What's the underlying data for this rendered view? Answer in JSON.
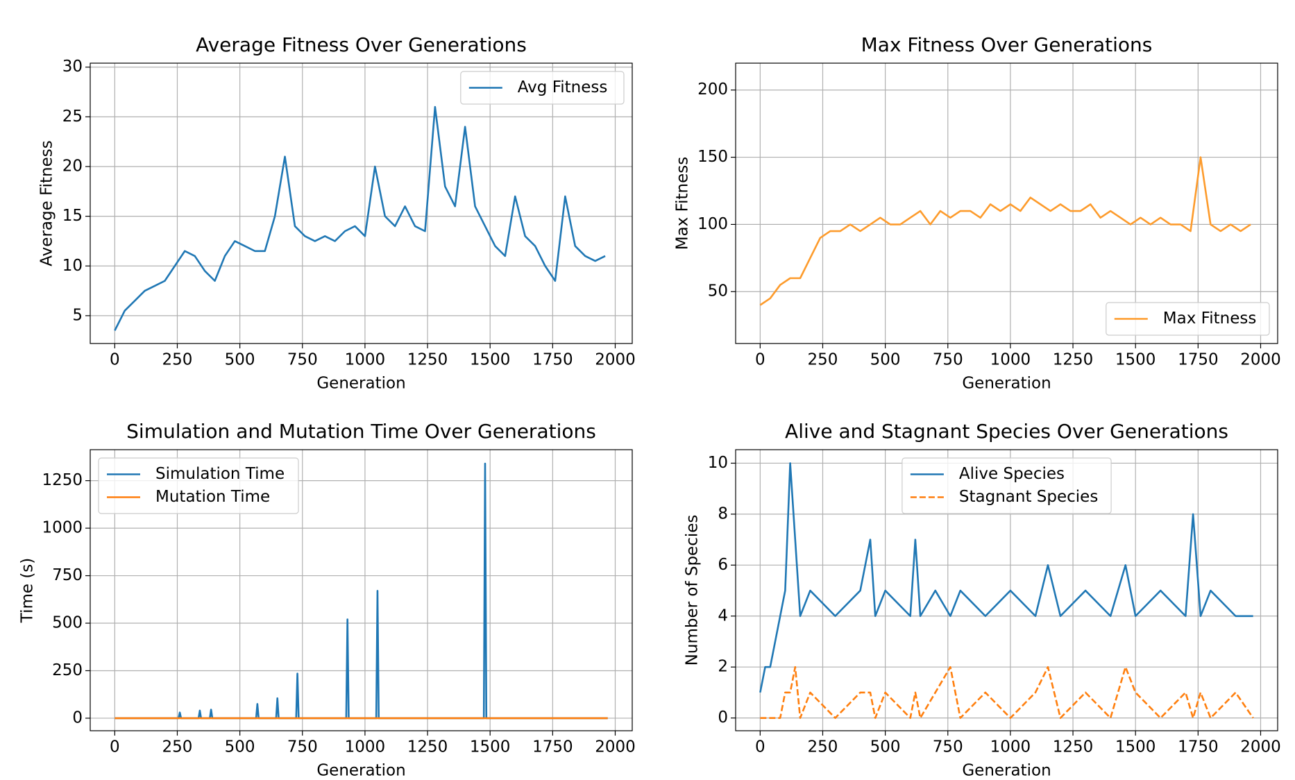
{
  "chart_data": [
    {
      "type": "line",
      "title": "Average Fitness Over Generations",
      "xlabel": "Generation",
      "ylabel": "Average Fitness",
      "x": [
        0,
        40,
        80,
        120,
        160,
        200,
        240,
        280,
        320,
        360,
        400,
        440,
        480,
        520,
        560,
        600,
        640,
        680,
        720,
        760,
        800,
        840,
        880,
        920,
        960,
        1000,
        1040,
        1080,
        1120,
        1160,
        1200,
        1240,
        1280,
        1320,
        1360,
        1400,
        1440,
        1480,
        1520,
        1560,
        1600,
        1640,
        1680,
        1720,
        1760,
        1800,
        1840,
        1880,
        1920,
        1960
      ],
      "series": [
        {
          "name": "Avg Fitness",
          "color": "#1f77b4",
          "values": [
            3.5,
            5.5,
            6.5,
            7.5,
            8,
            8.5,
            10,
            11.5,
            11,
            9.5,
            8.5,
            11,
            12.5,
            12,
            11.5,
            11.5,
            15,
            21,
            14,
            13,
            12.5,
            13,
            12.5,
            13.5,
            14,
            13,
            20,
            15,
            14,
            16,
            14,
            13.5,
            26,
            18,
            16,
            24,
            16,
            14,
            12,
            11,
            17,
            13,
            12,
            10,
            8.5,
            17,
            12,
            11,
            10.5,
            11
          ]
        }
      ],
      "xlim": [
        -98,
        2068
      ],
      "ylim": [
        2.2,
        30.4
      ],
      "xticks": [
        0,
        250,
        500,
        750,
        1000,
        1250,
        1500,
        1750,
        2000
      ],
      "yticks": [
        5,
        10,
        15,
        20,
        25,
        30
      ],
      "grid": true,
      "legend": "upper right"
    },
    {
      "type": "line",
      "title": "Max Fitness Over Generations",
      "xlabel": "Generation",
      "ylabel": "Max Fitness",
      "x": [
        0,
        40,
        80,
        120,
        160,
        200,
        240,
        280,
        320,
        360,
        400,
        440,
        480,
        520,
        560,
        600,
        640,
        680,
        720,
        760,
        800,
        840,
        880,
        920,
        960,
        1000,
        1040,
        1080,
        1120,
        1160,
        1200,
        1240,
        1280,
        1320,
        1360,
        1400,
        1440,
        1480,
        1520,
        1560,
        1600,
        1640,
        1680,
        1720,
        1760,
        1800,
        1840,
        1880,
        1920,
        1960
      ],
      "series": [
        {
          "name": "Max Fitness",
          "color": "#fd9b2c",
          "values": [
            40,
            45,
            55,
            60,
            60,
            75,
            90,
            95,
            95,
            100,
            95,
            100,
            105,
            100,
            100,
            105,
            110,
            100,
            110,
            105,
            110,
            110,
            105,
            115,
            110,
            115,
            110,
            120,
            115,
            110,
            115,
            110,
            110,
            115,
            105,
            110,
            105,
            100,
            105,
            100,
            105,
            100,
            100,
            95,
            150,
            100,
            95,
            100,
            95,
            100
          ]
        }
      ],
      "xlim": [
        -98,
        2068
      ],
      "ylim": [
        11.4,
        220
      ],
      "xticks": [
        0,
        250,
        500,
        750,
        1000,
        1250,
        1500,
        1750,
        2000
      ],
      "yticks": [
        50,
        100,
        150,
        200
      ],
      "grid": true,
      "legend": "lower right"
    },
    {
      "type": "line",
      "title": "Simulation and Mutation Time Over Generations",
      "xlabel": "Generation",
      "ylabel": "Time (s)",
      "x": [
        0,
        255,
        260,
        265,
        335,
        340,
        345,
        380,
        385,
        390,
        565,
        570,
        575,
        645,
        650,
        655,
        725,
        730,
        735,
        925,
        930,
        935,
        1045,
        1050,
        1055,
        1475,
        1480,
        1485,
        1970
      ],
      "series": [
        {
          "name": "Simulation Time",
          "color": "#1f77b4",
          "values": [
            0,
            0,
            30,
            0,
            0,
            40,
            0,
            0,
            45,
            0,
            0,
            75,
            0,
            0,
            105,
            0,
            0,
            235,
            0,
            0,
            520,
            0,
            0,
            670,
            0,
            0,
            1340,
            0,
            0
          ]
        },
        {
          "name": "Mutation Time",
          "color": "#ff7f0e",
          "values": [
            0,
            0,
            0,
            0,
            0,
            0,
            0,
            0,
            0,
            0,
            0,
            0,
            0,
            0,
            0,
            0,
            0,
            0,
            0,
            0,
            0,
            0,
            0,
            0,
            0,
            0,
            0,
            0,
            0
          ]
        }
      ],
      "xlim": [
        -98,
        2068
      ],
      "ylim": [
        -66,
        1413
      ],
      "xticks": [
        0,
        250,
        500,
        750,
        1000,
        1250,
        1500,
        1750,
        2000
      ],
      "yticks": [
        0,
        250,
        500,
        750,
        1000,
        1250
      ],
      "grid": true,
      "legend": "upper left"
    },
    {
      "type": "line",
      "title": "Alive and Stagnant Species Over Generations",
      "xlabel": "Generation",
      "ylabel": "Number of Species",
      "x": [
        0,
        20,
        40,
        60,
        80,
        100,
        120,
        140,
        160,
        200,
        300,
        400,
        440,
        460,
        500,
        600,
        620,
        640,
        700,
        760,
        800,
        900,
        1000,
        1100,
        1150,
        1200,
        1300,
        1400,
        1460,
        1500,
        1600,
        1700,
        1730,
        1760,
        1800,
        1900,
        1970
      ],
      "series": [
        {
          "name": "Alive Species",
          "color": "#1f77b4",
          "values": [
            1,
            2,
            2,
            3,
            4,
            5,
            10,
            7,
            4,
            5,
            4,
            5,
            7,
            4,
            5,
            4,
            7,
            4,
            5,
            4,
            5,
            4,
            5,
            4,
            6,
            4,
            5,
            4,
            6,
            4,
            5,
            4,
            8,
            4,
            5,
            4,
            4
          ]
        },
        {
          "name": "Stagnant Species",
          "color": "#ff7f0e",
          "linestyle": "dashed",
          "values": [
            0,
            0,
            0,
            0,
            0,
            1,
            1,
            2,
            0,
            1,
            0,
            1,
            1,
            0,
            1,
            0,
            1,
            0,
            1,
            2,
            0,
            1,
            0,
            1,
            2,
            0,
            1,
            0,
            2,
            1,
            0,
            1,
            0,
            1,
            0,
            1,
            0
          ]
        }
      ],
      "xlim": [
        -98,
        2068
      ],
      "ylim": [
        -0.5,
        10.53
      ],
      "xticks": [
        0,
        250,
        500,
        750,
        1000,
        1250,
        1500,
        1750,
        2000
      ],
      "yticks": [
        0,
        2,
        4,
        6,
        8,
        10
      ],
      "grid": true,
      "legend": "upper center"
    }
  ]
}
